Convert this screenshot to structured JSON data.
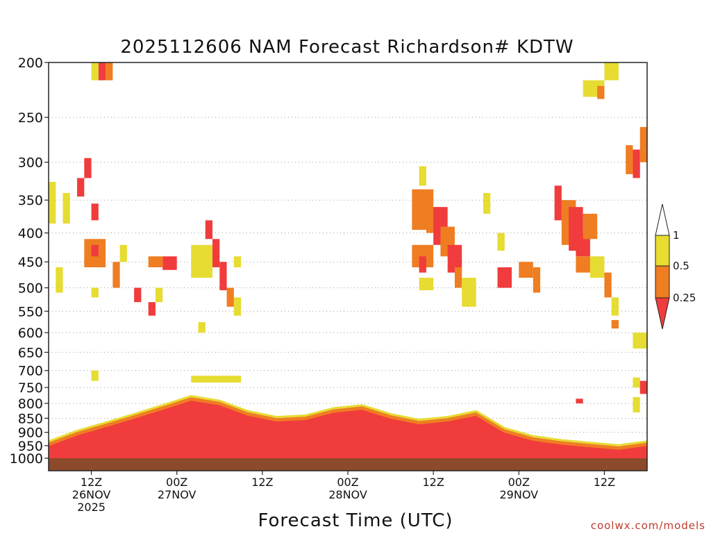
{
  "chart_data": {
    "type": "heatmap",
    "title": "2025112606 NAM Forecast Richardson# KDTW",
    "xlabel": "Forecast Time (UTC)",
    "ylabel": "",
    "credit": "coolwx.com/models",
    "y_axis": {
      "scale": "log",
      "direction": "inverted",
      "ylim": [
        1000,
        200
      ],
      "ticks": [
        200,
        250,
        300,
        350,
        400,
        450,
        500,
        550,
        600,
        650,
        700,
        750,
        800,
        850,
        900,
        950,
        1000
      ]
    },
    "x_axis": {
      "xlim": [
        "2025-11-26 06Z",
        "2025-11-29 18Z"
      ],
      "ticks": [
        {
          "hour": "12Z",
          "date": "26NOV",
          "year": "2025"
        },
        {
          "hour": "00Z",
          "date": "27NOV",
          "year": ""
        },
        {
          "hour": "12Z",
          "date": "",
          "year": ""
        },
        {
          "hour": "00Z",
          "date": "28NOV",
          "year": ""
        },
        {
          "hour": "12Z",
          "date": "",
          "year": ""
        },
        {
          "hour": "00Z",
          "date": "29NOV",
          "year": ""
        },
        {
          "hour": "12Z",
          "date": "",
          "year": ""
        }
      ]
    },
    "grid": "dotted horizontal lines at pressure levels",
    "colorbar": {
      "levels": [
        "1",
        "0.5",
        "0.25"
      ],
      "classes": [
        {
          "range": "0.5-1",
          "color": "#e6dc32"
        },
        {
          "range": "0.25-0.5",
          "color": "#ef7d22"
        },
        {
          "range": "<0.25",
          "color": "#f03c3c"
        }
      ]
    },
    "ground_color": "#8b4a2c",
    "patches": [
      {
        "t": [
          "26 06Z",
          "26 07Z"
        ],
        "p": [
          325,
          385
        ],
        "cls": "yellow"
      },
      {
        "t": [
          "26 08Z",
          "26 09Z"
        ],
        "p": [
          340,
          385
        ],
        "cls": "yellow"
      },
      {
        "t": [
          "26 10Z",
          "26 11Z"
        ],
        "p": [
          320,
          345
        ],
        "cls": "red"
      },
      {
        "t": [
          "26 11Z",
          "26 12Z"
        ],
        "p": [
          295,
          320
        ],
        "cls": "red"
      },
      {
        "t": [
          "26 12Z",
          "26 13Z"
        ],
        "p": [
          355,
          380
        ],
        "cls": "red"
      },
      {
        "t": [
          "26 11Z",
          "26 14Z"
        ],
        "p": [
          410,
          460
        ],
        "cls": "orange"
      },
      {
        "t": [
          "26 12Z",
          "26 13Z"
        ],
        "p": [
          420,
          440
        ],
        "cls": "red"
      },
      {
        "t": [
          "26 12Z",
          "26 13Z"
        ],
        "p": [
          200,
          215
        ],
        "cls": "yellow"
      },
      {
        "t": [
          "26 13Z",
          "26 14Z"
        ],
        "p": [
          200,
          215
        ],
        "cls": "red"
      },
      {
        "t": [
          "26 14Z",
          "26 15Z"
        ],
        "p": [
          200,
          215
        ],
        "cls": "orange"
      },
      {
        "t": [
          "26 07Z",
          "26 08Z"
        ],
        "p": [
          460,
          510
        ],
        "cls": "yellow"
      },
      {
        "t": [
          "26 12Z",
          "26 13Z"
        ],
        "p": [
          500,
          520
        ],
        "cls": "yellow"
      },
      {
        "t": [
          "26 15Z",
          "26 16Z"
        ],
        "p": [
          450,
          500
        ],
        "cls": "orange"
      },
      {
        "t": [
          "26 16Z",
          "26 17Z"
        ],
        "p": [
          420,
          450
        ],
        "cls": "yellow"
      },
      {
        "t": [
          "26 18Z",
          "26 19Z"
        ],
        "p": [
          500,
          530
        ],
        "cls": "red"
      },
      {
        "t": [
          "26 20Z",
          "26 21Z"
        ],
        "p": [
          530,
          560
        ],
        "cls": "red"
      },
      {
        "t": [
          "26 21Z",
          "26 22Z"
        ],
        "p": [
          500,
          530
        ],
        "cls": "yellow"
      },
      {
        "t": [
          "26 12Z",
          "26 13Z"
        ],
        "p": [
          700,
          730
        ],
        "cls": "yellow"
      },
      {
        "t": [
          "26 22Z",
          "27 00Z"
        ],
        "p": [
          440,
          465
        ],
        "cls": "red"
      },
      {
        "t": [
          "27 02Z",
          "27 05Z"
        ],
        "p": [
          420,
          480
        ],
        "cls": "yellow"
      },
      {
        "t": [
          "27 04Z",
          "27 05Z"
        ],
        "p": [
          380,
          410
        ],
        "cls": "red"
      },
      {
        "t": [
          "27 05Z",
          "27 06Z"
        ],
        "p": [
          410,
          460
        ],
        "cls": "red"
      },
      {
        "t": [
          "27 06Z",
          "27 07Z"
        ],
        "p": [
          450,
          505
        ],
        "cls": "red"
      },
      {
        "t": [
          "27 07Z",
          "27 08Z"
        ],
        "p": [
          500,
          540
        ],
        "cls": "orange"
      },
      {
        "t": [
          "27 08Z",
          "27 09Z"
        ],
        "p": [
          520,
          560
        ],
        "cls": "yellow"
      },
      {
        "t": [
          "27 08Z",
          "27 09Z"
        ],
        "p": [
          440,
          460
        ],
        "cls": "yellow"
      },
      {
        "t": [
          "27 03Z",
          "27 04Z"
        ],
        "p": [
          575,
          600
        ],
        "cls": "yellow"
      },
      {
        "t": [
          "26 20Z",
          "26 22Z"
        ],
        "p": [
          440,
          460
        ],
        "cls": "orange"
      },
      {
        "t": [
          "27 02Z",
          "27 09Z"
        ],
        "p": [
          715,
          735
        ],
        "cls": "yellow"
      },
      {
        "t": [
          "28 09Z",
          "28 12Z"
        ],
        "p": [
          335,
          395
        ],
        "cls": "orange"
      },
      {
        "t": [
          "28 10Z",
          "28 11Z"
        ],
        "p": [
          305,
          330
        ],
        "cls": "yellow"
      },
      {
        "t": [
          "28 11Z",
          "28 13Z"
        ],
        "p": [
          360,
          400
        ],
        "cls": "orange"
      },
      {
        "t": [
          "28 12Z",
          "28 14Z"
        ],
        "p": [
          360,
          420
        ],
        "cls": "red"
      },
      {
        "t": [
          "28 13Z",
          "28 15Z"
        ],
        "p": [
          390,
          440
        ],
        "cls": "orange"
      },
      {
        "t": [
          "28 14Z",
          "28 16Z"
        ],
        "p": [
          420,
          470
        ],
        "cls": "red"
      },
      {
        "t": [
          "28 15Z",
          "28 16Z"
        ],
        "p": [
          460,
          500
        ],
        "cls": "orange"
      },
      {
        "t": [
          "28 16Z",
          "28 18Z"
        ],
        "p": [
          480,
          540
        ],
        "cls": "yellow"
      },
      {
        "t": [
          "28 09Z",
          "28 12Z"
        ],
        "p": [
          420,
          460
        ],
        "cls": "orange"
      },
      {
        "t": [
          "28 10Z",
          "28 11Z"
        ],
        "p": [
          440,
          470
        ],
        "cls": "red"
      },
      {
        "t": [
          "28 10Z",
          "28 12Z"
        ],
        "p": [
          480,
          505
        ],
        "cls": "yellow"
      },
      {
        "t": [
          "28 21Z",
          "28 23Z"
        ],
        "p": [
          460,
          500
        ],
        "cls": "red"
      },
      {
        "t": [
          "29 00Z",
          "29 02Z"
        ],
        "p": [
          450,
          480
        ],
        "cls": "orange"
      },
      {
        "t": [
          "29 02Z",
          "29 03Z"
        ],
        "p": [
          460,
          510
        ],
        "cls": "orange"
      },
      {
        "t": [
          "28 19Z",
          "28 20Z"
        ],
        "p": [
          340,
          370
        ],
        "cls": "yellow"
      },
      {
        "t": [
          "28 21Z",
          "28 22Z"
        ],
        "p": [
          400,
          430
        ],
        "cls": "yellow"
      },
      {
        "t": [
          "29 05Z",
          "29 06Z"
        ],
        "p": [
          330,
          380
        ],
        "cls": "red"
      },
      {
        "t": [
          "29 06Z",
          "29 08Z"
        ],
        "p": [
          350,
          420
        ],
        "cls": "orange"
      },
      {
        "t": [
          "29 07Z",
          "29 09Z"
        ],
        "p": [
          360,
          430
        ],
        "cls": "red"
      },
      {
        "t": [
          "29 08Z",
          "29 10Z"
        ],
        "p": [
          400,
          440
        ],
        "cls": "red"
      },
      {
        "t": [
          "29 09Z",
          "29 11Z"
        ],
        "p": [
          370,
          410
        ],
        "cls": "orange"
      },
      {
        "t": [
          "29 08Z",
          "29 10Z"
        ],
        "p": [
          440,
          470
        ],
        "cls": "orange"
      },
      {
        "t": [
          "29 10Z",
          "29 12Z"
        ],
        "p": [
          440,
          480
        ],
        "cls": "yellow"
      },
      {
        "t": [
          "29 12Z",
          "29 13Z"
        ],
        "p": [
          470,
          520
        ],
        "cls": "orange"
      },
      {
        "t": [
          "29 13Z",
          "29 14Z"
        ],
        "p": [
          520,
          560
        ],
        "cls": "yellow"
      },
      {
        "t": [
          "29 09Z",
          "29 12Z"
        ],
        "p": [
          215,
          230
        ],
        "cls": "yellow"
      },
      {
        "t": [
          "29 11Z",
          "29 12Z"
        ],
        "p": [
          220,
          232
        ],
        "cls": "orange"
      },
      {
        "t": [
          "29 12Z",
          "29 14Z"
        ],
        "p": [
          200,
          215
        ],
        "cls": "yellow"
      },
      {
        "t": [
          "29 15Z",
          "29 16Z"
        ],
        "p": [
          280,
          315
        ],
        "cls": "orange"
      },
      {
        "t": [
          "29 16Z",
          "29 17Z"
        ],
        "p": [
          285,
          320
        ],
        "cls": "red"
      },
      {
        "t": [
          "29 17Z",
          "29 18Z"
        ],
        "p": [
          260,
          300
        ],
        "cls": "orange"
      },
      {
        "t": [
          "29 13Z",
          "29 14Z"
        ],
        "p": [
          570,
          590
        ],
        "cls": "orange"
      },
      {
        "t": [
          "29 16Z",
          "29 18Z"
        ],
        "p": [
          600,
          640
        ],
        "cls": "yellow"
      },
      {
        "t": [
          "29 16Z",
          "29 17Z"
        ],
        "p": [
          720,
          750
        ],
        "cls": "yellow"
      },
      {
        "t": [
          "29 17Z",
          "29 18Z"
        ],
        "p": [
          730,
          770
        ],
        "cls": "red"
      },
      {
        "t": [
          "29 08Z",
          "29 09Z"
        ],
        "p": [
          785,
          800
        ],
        "cls": "red"
      },
      {
        "t": [
          "29 16Z",
          "29 17Z"
        ],
        "p": [
          780,
          830
        ],
        "cls": "yellow"
      }
    ],
    "low_level_layer": {
      "description": "near-surface red/orange/yellow layer",
      "points": [
        {
          "t": "26 06Z",
          "top_p": 950
        },
        {
          "t": "26 10Z",
          "top_p": 910
        },
        {
          "t": "26 14Z",
          "top_p": 880
        },
        {
          "t": "26 18Z",
          "top_p": 850
        },
        {
          "t": "26 22Z",
          "top_p": 820
        },
        {
          "t": "27 02Z",
          "top_p": 790
        },
        {
          "t": "27 06Z",
          "top_p": 805
        },
        {
          "t": "27 10Z",
          "top_p": 840
        },
        {
          "t": "27 14Z",
          "top_p": 860
        },
        {
          "t": "27 18Z",
          "top_p": 855
        },
        {
          "t": "27 22Z",
          "top_p": 830
        },
        {
          "t": "28 02Z",
          "top_p": 820
        },
        {
          "t": "28 06Z",
          "top_p": 850
        },
        {
          "t": "28 10Z",
          "top_p": 870
        },
        {
          "t": "28 14Z",
          "top_p": 860
        },
        {
          "t": "28 18Z",
          "top_p": 840
        },
        {
          "t": "28 22Z",
          "top_p": 900
        },
        {
          "t": "29 02Z",
          "top_p": 930
        },
        {
          "t": "29 06Z",
          "top_p": 945
        },
        {
          "t": "29 10Z",
          "top_p": 955
        },
        {
          "t": "29 14Z",
          "top_p": 965
        },
        {
          "t": "29 18Z",
          "top_p": 950
        }
      ]
    }
  }
}
